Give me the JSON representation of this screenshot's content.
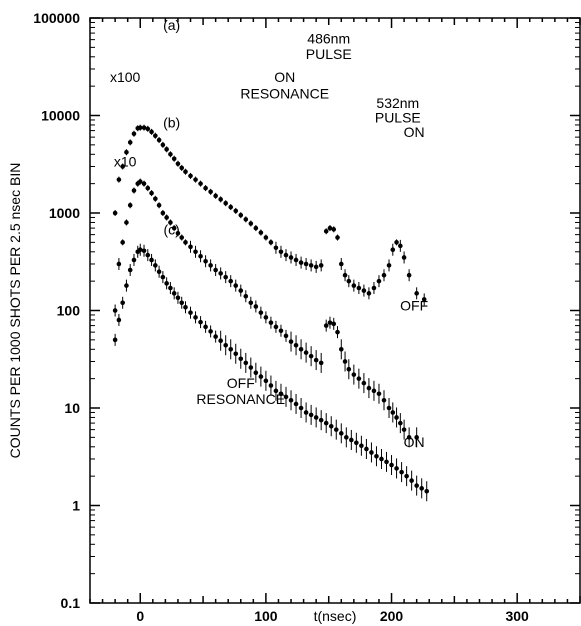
{
  "chart_data": {
    "type": "scatter",
    "title": "",
    "xlabel": "t(nsec)",
    "ylabel": "COUNTS PER 1000 SHOTS PER 2.5 nsec BIN",
    "xlim": [
      -40,
      350
    ],
    "ylim": [
      0.1,
      100000
    ],
    "yscale": "log",
    "x_ticks": [
      0,
      100,
      200,
      300
    ],
    "y_ticks": [
      {
        "value": 100000,
        "label": "100000"
      },
      {
        "value": 10000,
        "label": "10000"
      },
      {
        "value": 1000,
        "label": "1000"
      },
      {
        "value": 100,
        "label": "100"
      },
      {
        "value": 10,
        "label": "10"
      },
      {
        "value": 1,
        "label": "1"
      },
      {
        "value": 0.1,
        "label": "0.1"
      }
    ],
    "grid": false,
    "series": [
      {
        "name": "(a)",
        "scale_label": "x100",
        "points": [
          [
            -20,
            1000
          ],
          [
            -17,
            2200
          ],
          [
            -14,
            3000
          ],
          [
            -11,
            4200
          ],
          [
            -8,
            5300
          ],
          [
            -5,
            6500
          ],
          [
            -2,
            7400
          ],
          [
            0,
            7500
          ],
          [
            3,
            7500
          ],
          [
            6,
            7300
          ],
          [
            9,
            6800
          ],
          [
            12,
            6200
          ],
          [
            15,
            5600
          ],
          [
            18,
            5000
          ],
          [
            21,
            4500
          ],
          [
            24,
            4000
          ],
          [
            27,
            3600
          ],
          [
            30,
            3200
          ],
          [
            33,
            2900
          ],
          [
            36,
            2650
          ],
          [
            40,
            2400
          ],
          [
            44,
            2200
          ],
          [
            48,
            2000
          ],
          [
            52,
            1800
          ],
          [
            56,
            1650
          ],
          [
            60,
            1500
          ],
          [
            64,
            1380
          ],
          [
            68,
            1260
          ],
          [
            72,
            1150
          ],
          [
            76,
            1050
          ],
          [
            80,
            950
          ],
          [
            84,
            860
          ],
          [
            88,
            780
          ],
          [
            92,
            700
          ],
          [
            96,
            630
          ],
          [
            100,
            560
          ],
          [
            104,
            500
          ],
          [
            108,
            440
          ],
          [
            112,
            400
          ],
          [
            116,
            370
          ],
          [
            120,
            350
          ],
          [
            124,
            330
          ],
          [
            128,
            310
          ],
          [
            132,
            300
          ],
          [
            136,
            290
          ],
          [
            140,
            280
          ],
          [
            144,
            290
          ],
          [
            148,
            650
          ],
          [
            151,
            700
          ],
          [
            154,
            680
          ],
          [
            157,
            560
          ],
          [
            160,
            300
          ],
          [
            163,
            230
          ],
          [
            166,
            200
          ],
          [
            170,
            180
          ],
          [
            174,
            170
          ],
          [
            178,
            160
          ],
          [
            182,
            150
          ],
          [
            186,
            170
          ],
          [
            190,
            200
          ],
          [
            194,
            230
          ],
          [
            198,
            290
          ],
          [
            201,
            420
          ],
          [
            204,
            500
          ],
          [
            207,
            460
          ],
          [
            210,
            350
          ],
          [
            214,
            230
          ],
          [
            220,
            150
          ],
          [
            226,
            130
          ]
        ]
      },
      {
        "name": "(b)",
        "scale_label": "x10",
        "points": [
          [
            -20,
            100
          ],
          [
            -17,
            300
          ],
          [
            -14,
            500
          ],
          [
            -11,
            800
          ],
          [
            -8,
            1200
          ],
          [
            -5,
            1700
          ],
          [
            -2,
            2000
          ],
          [
            0,
            2100
          ],
          [
            3,
            2000
          ],
          [
            6,
            1800
          ],
          [
            9,
            1600
          ],
          [
            12,
            1400
          ],
          [
            15,
            1200
          ],
          [
            18,
            1000
          ],
          [
            21,
            900
          ],
          [
            24,
            800
          ],
          [
            27,
            700
          ],
          [
            30,
            620
          ],
          [
            33,
            560
          ],
          [
            36,
            500
          ],
          [
            40,
            450
          ],
          [
            44,
            400
          ],
          [
            48,
            360
          ],
          [
            52,
            320
          ],
          [
            56,
            290
          ],
          [
            60,
            260
          ],
          [
            64,
            240
          ],
          [
            68,
            220
          ],
          [
            72,
            200
          ],
          [
            76,
            180
          ],
          [
            80,
            160
          ],
          [
            84,
            140
          ],
          [
            88,
            120
          ],
          [
            92,
            110
          ],
          [
            96,
            95
          ],
          [
            100,
            85
          ],
          [
            104,
            75
          ],
          [
            108,
            68
          ],
          [
            112,
            62
          ],
          [
            116,
            55
          ],
          [
            120,
            48
          ],
          [
            124,
            44
          ],
          [
            128,
            40
          ],
          [
            132,
            37
          ],
          [
            136,
            34
          ],
          [
            140,
            31
          ],
          [
            144,
            29
          ],
          [
            148,
            70
          ],
          [
            151,
            75
          ],
          [
            154,
            73
          ],
          [
            157,
            60
          ],
          [
            160,
            40
          ],
          [
            163,
            30
          ],
          [
            166,
            25
          ],
          [
            170,
            22
          ],
          [
            174,
            20
          ],
          [
            178,
            18
          ],
          [
            182,
            16
          ],
          [
            186,
            15
          ],
          [
            190,
            14
          ],
          [
            194,
            12
          ],
          [
            198,
            10
          ],
          [
            201,
            9
          ],
          [
            204,
            8
          ],
          [
            207,
            7
          ],
          [
            210,
            6
          ],
          [
            214,
            5
          ],
          [
            220,
            5
          ]
        ]
      },
      {
        "name": "(c)",
        "scale_label": "",
        "points": [
          [
            -20,
            50
          ],
          [
            -17,
            80
          ],
          [
            -14,
            120
          ],
          [
            -11,
            180
          ],
          [
            -8,
            260
          ],
          [
            -5,
            330
          ],
          [
            -2,
            400
          ],
          [
            0,
            420
          ],
          [
            3,
            410
          ],
          [
            6,
            370
          ],
          [
            9,
            330
          ],
          [
            12,
            290
          ],
          [
            15,
            250
          ],
          [
            18,
            220
          ],
          [
            21,
            190
          ],
          [
            24,
            170
          ],
          [
            27,
            150
          ],
          [
            30,
            135
          ],
          [
            33,
            120
          ],
          [
            36,
            108
          ],
          [
            40,
            95
          ],
          [
            44,
            85
          ],
          [
            48,
            76
          ],
          [
            52,
            68
          ],
          [
            56,
            61
          ],
          [
            60,
            54
          ],
          [
            64,
            49
          ],
          [
            68,
            44
          ],
          [
            72,
            40
          ],
          [
            76,
            36
          ],
          [
            80,
            32
          ],
          [
            84,
            29
          ],
          [
            88,
            26
          ],
          [
            92,
            23
          ],
          [
            96,
            21
          ],
          [
            100,
            19
          ],
          [
            104,
            17
          ],
          [
            108,
            15
          ],
          [
            112,
            14
          ],
          [
            116,
            13
          ],
          [
            120,
            12
          ],
          [
            124,
            11
          ],
          [
            128,
            10
          ],
          [
            132,
            9
          ],
          [
            136,
            8.5
          ],
          [
            140,
            8
          ],
          [
            144,
            7.5
          ],
          [
            148,
            7
          ],
          [
            152,
            6.5
          ],
          [
            156,
            6
          ],
          [
            160,
            5.5
          ],
          [
            164,
            5
          ],
          [
            168,
            4.7
          ],
          [
            172,
            4.4
          ],
          [
            176,
            4.1
          ],
          [
            180,
            3.8
          ],
          [
            184,
            3.5
          ],
          [
            188,
            3.2
          ],
          [
            192,
            3.0
          ],
          [
            196,
            2.8
          ],
          [
            200,
            2.6
          ],
          [
            204,
            2.4
          ],
          [
            208,
            2.2
          ],
          [
            212,
            2.0
          ],
          [
            216,
            1.8
          ],
          [
            220,
            1.6
          ],
          [
            224,
            1.5
          ],
          [
            228,
            1.4
          ]
        ]
      }
    ],
    "annotations": [
      {
        "label": "(a)",
        "x": 25,
        "y": 75000
      },
      {
        "label": "x100",
        "x": -12,
        "y": 22000
      },
      {
        "label": "(b)",
        "x": 25,
        "y": 7500
      },
      {
        "label": "x10",
        "x": -12,
        "y": 3000
      },
      {
        "label": "(c)",
        "x": 25,
        "y": 600
      },
      {
        "label": "486nm",
        "x": 150,
        "y": 55000
      },
      {
        "label": "PULSE",
        "x": 150,
        "y": 38000
      },
      {
        "label": "ON",
        "x": 115,
        "y": 22000
      },
      {
        "label": "RESONANCE",
        "x": 115,
        "y": 15000
      },
      {
        "label": "532nm",
        "x": 205,
        "y": 12000
      },
      {
        "label": "PULSE",
        "x": 205,
        "y": 8500
      },
      {
        "label": "ON",
        "x": 218,
        "y": 6000
      },
      {
        "label": "OFF",
        "x": 218,
        "y": 100
      },
      {
        "label": "OFF",
        "x": 80,
        "y": 16
      },
      {
        "label": "RESONANCE",
        "x": 80,
        "y": 11
      },
      {
        "label": "ON",
        "x": 218,
        "y": 4
      }
    ]
  }
}
